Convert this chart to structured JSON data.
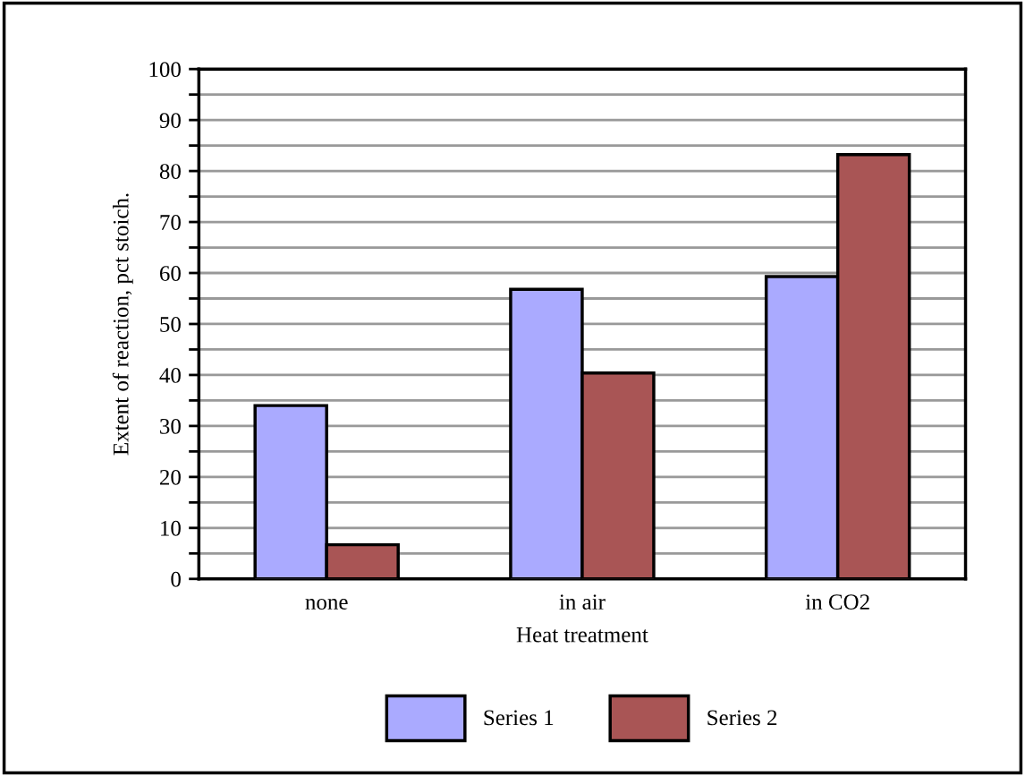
{
  "chart_data": {
    "type": "bar",
    "xlabel": "Heat treatment",
    "ylabel": "Extent of reaction, pct stoich.",
    "categories": [
      "none",
      "in air",
      "in CO2"
    ],
    "series": [
      {
        "name": "Series 1",
        "color": "#aaaaff",
        "values": [
          34.0,
          56.8,
          59.3
        ]
      },
      {
        "name": "Series 2",
        "color": "#a95555",
        "values": [
          6.7,
          40.4,
          83.2
        ]
      }
    ],
    "ylim": [
      0,
      100
    ],
    "yticks": [
      0,
      {
        "value": 5,
        "label": null
      },
      10,
      {
        "value": 15,
        "label": null
      },
      20,
      {
        "value": 25,
        "label": null
      },
      30,
      {
        "value": 35,
        "label": null
      },
      40,
      {
        "value": 45,
        "label": null
      },
      50,
      {
        "value": 55,
        "label": null
      },
      60,
      {
        "value": 65,
        "label": null
      },
      70,
      {
        "value": 75,
        "label": null
      },
      80,
      {
        "value": 85,
        "label": null
      },
      90,
      {
        "value": 95,
        "label": null
      },
      100
    ],
    "grid": "y",
    "legend": "bottom"
  }
}
